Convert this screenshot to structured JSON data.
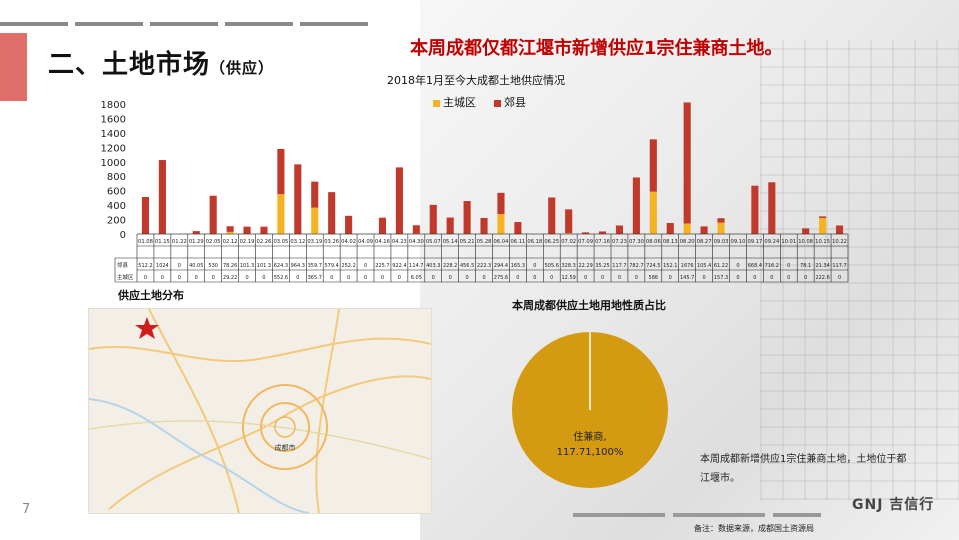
{
  "page": {
    "title": "二、土地市场",
    "title_suffix": "（供应）",
    "headline": "本周成都仅都江堰市新增供应1宗住兼商土地。",
    "page_number": "7",
    "footer_note": "备注：数据来源，成都国土资源局",
    "logo": "GNJ 吉信行"
  },
  "colors": {
    "main_district": "#f5b324",
    "suburb": "#c0392b",
    "pie": "#d49a11",
    "headline": "#c00000"
  },
  "sections": {
    "map_label": "供应土地分布",
    "map_city_label": "成都市",
    "pie_title": "本周成都供应土地用地性质占比",
    "pie_note": "本周成都新增供应1宗住兼商土地，土地位于都江堰市。"
  },
  "chart_data": [
    {
      "type": "bar",
      "stacked": true,
      "title": "2018年1月至今大成都土地供应情况",
      "ylim": [
        0,
        1800
      ],
      "yticks": [
        0,
        200,
        400,
        600,
        800,
        1000,
        1200,
        1400,
        1600,
        1800
      ],
      "legend_position": "top",
      "categories": [
        "01.08",
        "01.15",
        "01.22",
        "01.29",
        "02.05",
        "02.12",
        "02.19",
        "02.26",
        "03.05",
        "03.12",
        "03.19",
        "03.26",
        "04.02",
        "04.09",
        "04.16",
        "04.23",
        "04.30",
        "05.07",
        "05.14",
        "05.21",
        "05.28",
        "06.04",
        "06.11",
        "06.18",
        "06.25",
        "07.02",
        "07.09",
        "07.16",
        "07.23",
        "07.30",
        "08.06",
        "08.13",
        "08.20",
        "08.27",
        "09.03",
        "09.10",
        "09.17",
        "09.24",
        "10.01",
        "10.08",
        "10.15",
        "10.22"
      ],
      "row_labels": [
        "郊县",
        "主城区"
      ],
      "series": [
        {
          "name": "主城区",
          "values": [
            0,
            0,
            0,
            0,
            0,
            29.22,
            0,
            0,
            552.6,
            0,
            365.7,
            0,
            0,
            0,
            0,
            0,
            6.05,
            0,
            0,
            0,
            0,
            275.6,
            0,
            0,
            0,
            12.59,
            0,
            0,
            0,
            0,
            586,
            0,
            145.7,
            0,
            157.3,
            0,
            0,
            0,
            0,
            0,
            222.6,
            0
          ]
        },
        {
          "name": "郊县",
          "values": [
            512.2,
            1024,
            0,
            40.05,
            530,
            78.26,
            101.3,
            101.3,
            624.3,
            964.3,
            359.7,
            579.4,
            252.2,
            0,
            225.7,
            922.4,
            114.7,
            403.3,
            228.2,
            456.5,
            222.3,
            294.4,
            165.3,
            0,
            505.6,
            328.3,
            22.29,
            35.25,
            117.7,
            782.7,
            724.5,
            152.1,
            1676,
            105.4,
            61.22,
            0,
            668.4,
            716.2,
            0,
            78.1,
            21.34,
            117.7
          ]
        }
      ],
      "table": {
        "suburb_display": [
          "512.2",
          "1024",
          "0",
          "40.05",
          "530",
          "78.26",
          "101.3",
          "101.3",
          "624.3",
          "964.3",
          "359.7",
          "579.4",
          "252.2",
          "0",
          "225.7",
          "922.4",
          "114.7",
          "403.3",
          "228.2",
          "456.5",
          "222.3",
          "294.4",
          "165.3",
          "0",
          "505.6",
          "328.3",
          "22.29",
          "35.25",
          "117.7",
          "782.7",
          "724.5",
          "152.1",
          "1676",
          "105.4",
          "61.22",
          "0",
          "668.4",
          "716.2",
          "0",
          "78.1",
          "21.34",
          "117.7"
        ],
        "main_display": [
          "0",
          "0",
          "0",
          "0",
          "0",
          "29.22",
          "0",
          "0",
          "552.6",
          "0",
          "365.7",
          "0",
          "0",
          "0",
          "0",
          "0",
          "6.05",
          "0",
          "0",
          "0",
          "0",
          "275.6",
          "0",
          "0",
          "0",
          "12.59",
          "0",
          "0",
          "0",
          "0",
          "586",
          "0",
          "145.7",
          "0",
          "157.3",
          "0",
          "0",
          "0",
          "0",
          "0",
          "222.6",
          "0"
        ]
      }
    },
    {
      "type": "pie",
      "title": "本周成都供应土地用地性质占比",
      "slices": [
        {
          "label": "住兼商",
          "value": 117.71,
          "percent": 100,
          "display": "住兼商,\n117.71,100%"
        }
      ]
    }
  ]
}
